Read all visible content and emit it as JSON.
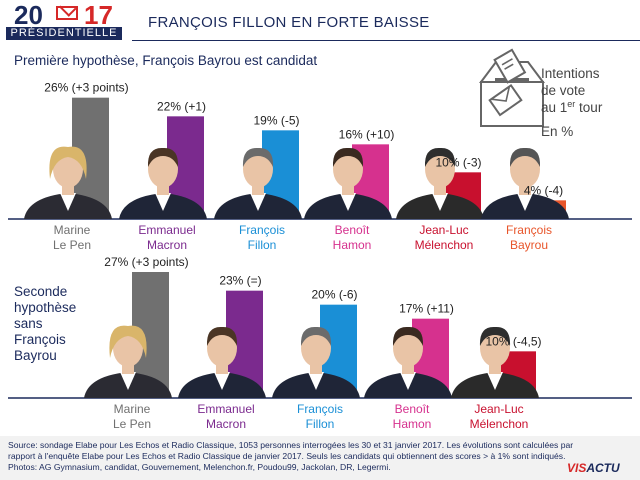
{
  "header": {
    "logo_left": "20",
    "logo_right": "17",
    "logo_sub": "PRÉSIDENTIELLE",
    "title": "FRANÇOIS FILLON EN FORTE BAISSE"
  },
  "legend": {
    "line1": "Intentions",
    "line2": "de vote",
    "line3_prefix": "au 1",
    "line3_sup": "er",
    "line3_suffix": " tour",
    "unit": "En %",
    "icon": "ballot-box-icon"
  },
  "colors": {
    "brand_navy": "#1b2a5c",
    "brand_red": "#d62828",
    "bg_footer": "#f2f2f2",
    "axis": "#1b2a5c"
  },
  "chart_data": [
    {
      "type": "bar",
      "title": "Première hypothèse, François Bayrou est candidat",
      "ylim": [
        0,
        30
      ],
      "categories": [
        "Marine Le Pen",
        "Emmanuel Macron",
        "François Fillon",
        "Benoît Hamon",
        "Jean-Luc Mélenchon",
        "François Bayrou"
      ],
      "values": [
        26,
        22,
        19,
        16,
        10,
        4
      ],
      "value_labels": [
        "26% (+3 points)",
        "22% (+1)",
        "19% (-5)",
        "16% (+10)",
        "10% (-3)",
        "4% (-4)"
      ],
      "changes": [
        3,
        1,
        -5,
        10,
        -3,
        -4
      ],
      "names": [
        [
          "Marine",
          "Le Pen"
        ],
        [
          "Emmanuel",
          "Macron"
        ],
        [
          "François",
          "Fillon"
        ],
        [
          "Benoît",
          "Hamon"
        ],
        [
          "Jean-Luc",
          "Mélenchon"
        ],
        [
          "François",
          "Bayrou"
        ]
      ],
      "bar_colors": [
        "#707070",
        "#7b2a8e",
        "#1a8fd6",
        "#d6318e",
        "#c8102e",
        "#e8552a"
      ],
      "name_colors": [
        "#707070",
        "#7b2a8e",
        "#1a8fd6",
        "#d6318e",
        "#c8102e",
        "#e8552a"
      ]
    },
    {
      "type": "bar",
      "title": [
        "Seconde",
        "hypothèse",
        "sans",
        "François",
        "Bayrou"
      ],
      "ylim": [
        0,
        30
      ],
      "categories": [
        "Marine Le Pen",
        "Emmanuel Macron",
        "François Fillon",
        "Benoît Hamon",
        "Jean-Luc Mélenchon"
      ],
      "values": [
        27,
        23,
        20,
        17,
        10
      ],
      "value_labels": [
        "27% (+3 points)",
        "23% (=)",
        "20% (-6)",
        "17% (+11)",
        "10% (-4,5)"
      ],
      "changes": [
        3,
        0,
        -6,
        11,
        -4.5
      ],
      "names": [
        [
          "Marine",
          "Le Pen"
        ],
        [
          "Emmanuel",
          "Macron"
        ],
        [
          "François",
          "Fillon"
        ],
        [
          "Benoît",
          "Hamon"
        ],
        [
          "Jean-Luc",
          "Mélenchon"
        ]
      ],
      "bar_colors": [
        "#707070",
        "#7b2a8e",
        "#1a8fd6",
        "#d6318e",
        "#c8102e"
      ],
      "name_colors": [
        "#707070",
        "#7b2a8e",
        "#1a8fd6",
        "#d6318e",
        "#c8102e"
      ]
    }
  ],
  "footer": {
    "source": "Source: sondage Elabe pour Les Echos et Radio Classique, 1053 personnes interrogées les 30 et 31 janvier 2017. Les évolutions sont calculées par rapport à l'enquête Elabe pour Les Echos et Radio Classique de janvier 2017. Seuls les candidats qui obtiennent des scores > à 1% sont indiqués. Photos: AG Gymnasium, candidat, Gouvernement, Melenchon.fr, Poudou99, Jackolan, DR, Legermi.",
    "brand_a": "VIS",
    "brand_b": "ACTU"
  }
}
